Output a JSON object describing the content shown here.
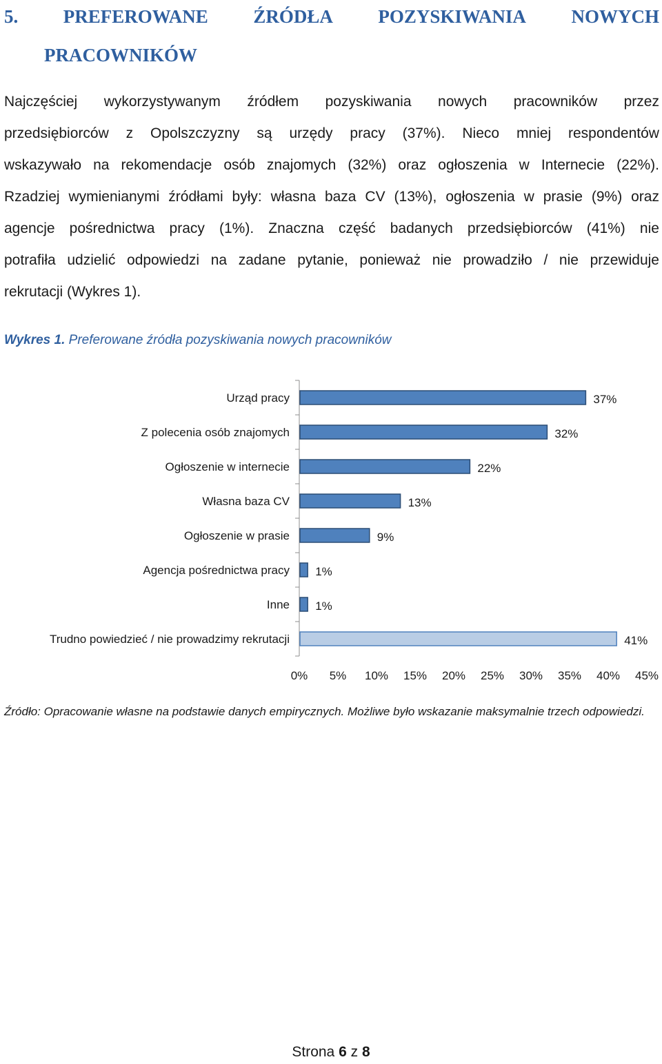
{
  "heading": {
    "number": "5.",
    "line1_words": [
      "PREFEROWANE",
      "ŹRÓDŁA",
      "POZYSKIWANIA",
      "NOWYCH"
    ],
    "line2": "PRACOWNIKÓW"
  },
  "paragraph_lines": [
    [
      "Najczęściej",
      "wykorzystywanym",
      "źródłem",
      "pozyskiwania",
      "nowych",
      "pracowników",
      "przez"
    ],
    [
      "przedsiębiorców",
      "z",
      "Opolszczyzny",
      "są",
      "urzędy",
      "pracy",
      "(37%).",
      "Nieco",
      "mniej",
      "respondentów"
    ],
    [
      "wskazywało",
      "na",
      "rekomendacje",
      "osób",
      "znajomych",
      "(32%)",
      "oraz",
      "ogłoszenia",
      "w",
      "Internecie",
      "(22%)."
    ],
    [
      "Rzadziej",
      "wymienianymi",
      "źródłami",
      "były:",
      "własna",
      "baza",
      "CV",
      "(13%),",
      "ogłoszenia",
      "w",
      "prasie",
      "(9%)",
      "oraz"
    ],
    [
      "agencje",
      "pośrednictwa",
      "pracy",
      "(1%).",
      "Znaczna",
      "część",
      "badanych",
      "przedsiębiorców",
      "(41%)",
      "nie"
    ],
    [
      "potrafiła",
      "udzielić",
      "odpowiedzi",
      "na",
      "zadane",
      "pytanie,",
      "ponieważ",
      "nie",
      "prowadziło",
      "/",
      "nie",
      "przewiduje"
    ],
    [
      "rekrutacji (Wykres 1)."
    ]
  ],
  "figure_caption": {
    "label": "Wykres 1.",
    "text": "Preferowane źródła pozyskiwania nowych pracowników"
  },
  "chart_data": {
    "type": "bar",
    "orientation": "horizontal",
    "categories": [
      "Urząd pracy",
      "Z polecenia osób znajomych",
      "Ogłoszenie w internecie",
      "Własna baza CV",
      "Ogłoszenie w prasie",
      "Agencja pośrednictwa pracy",
      "Inne",
      "Trudno powiedzieć / nie prowadzimy rekrutacji"
    ],
    "values": [
      37,
      32,
      22,
      13,
      9,
      1,
      1,
      41
    ],
    "value_labels": [
      "37%",
      "32%",
      "22%",
      "13%",
      "9%",
      "1%",
      "1%",
      "41%"
    ],
    "xlim": [
      0,
      45
    ],
    "xticks": [
      "0%",
      "5%",
      "10%",
      "15%",
      "20%",
      "25%",
      "30%",
      "35%",
      "40%",
      "45%"
    ],
    "grid": false,
    "colors": {
      "main": "#4f81bd",
      "main_stroke": "#2c4d75",
      "last": "#b9cde5",
      "last_stroke": "#4f81bd",
      "axis": "#8c8c8c"
    }
  },
  "source_note": "Źródło: Opracowanie własne na podstawie danych empirycznych. Możliwe było wskazanie maksymalnie trzech odpowiedzi.",
  "footer": {
    "prefix": "Strona",
    "page": "6",
    "sep": "z",
    "total": "8"
  }
}
